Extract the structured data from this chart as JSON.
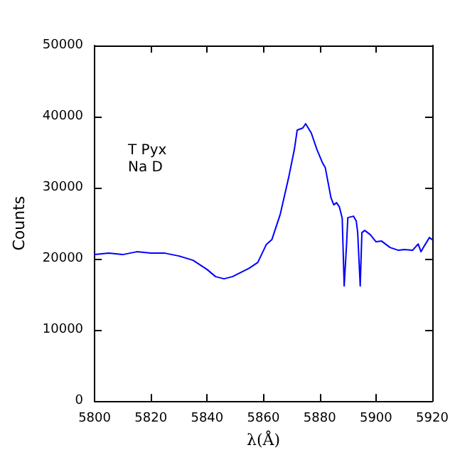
{
  "chart_data": {
    "type": "line",
    "xlabel": "λ(Å)",
    "ylabel": "Counts",
    "annotations": [
      "T Pyx\nNa D"
    ],
    "xlim": [
      5800,
      5920
    ],
    "xticks": [
      5800,
      5820,
      5840,
      5860,
      5880,
      5900,
      5920
    ],
    "ylim": [
      0,
      50000
    ],
    "yticks": [
      0,
      10000,
      20000,
      30000,
      40000,
      50000
    ],
    "marker": "none",
    "line_style": "solid",
    "series": [
      {
        "color": "#0000ff",
        "x": [
          5800,
          5805,
          5810,
          5815,
          5820,
          5825,
          5830,
          5835,
          5840,
          5843,
          5846,
          5849,
          5852,
          5855,
          5858,
          5861,
          5863,
          5866,
          5869,
          5871,
          5872,
          5874,
          5875,
          5877,
          5879,
          5881,
          5882,
          5884,
          5885,
          5886,
          5887,
          5888,
          5888.7,
          5889.5,
          5890,
          5892,
          5893,
          5893.5,
          5894.4,
          5895,
          5896,
          5898,
          5900,
          5902,
          5905,
          5908,
          5910,
          5913,
          5915,
          5916,
          5917,
          5919,
          5920
        ],
        "values": [
          20600,
          20800,
          20600,
          21000,
          20800,
          20800,
          20400,
          19800,
          18500,
          17500,
          17200,
          17500,
          18100,
          18700,
          19500,
          22000,
          22700,
          26300,
          31500,
          35400,
          38100,
          38400,
          39000,
          37700,
          35400,
          33500,
          32800,
          28600,
          27600,
          27900,
          27300,
          25700,
          16200,
          21700,
          25800,
          26000,
          25300,
          23700,
          16200,
          23700,
          24000,
          23400,
          22400,
          22500,
          21600,
          21200,
          21300,
          21200,
          22100,
          21000,
          21700,
          23000,
          22700
        ]
      }
    ]
  }
}
